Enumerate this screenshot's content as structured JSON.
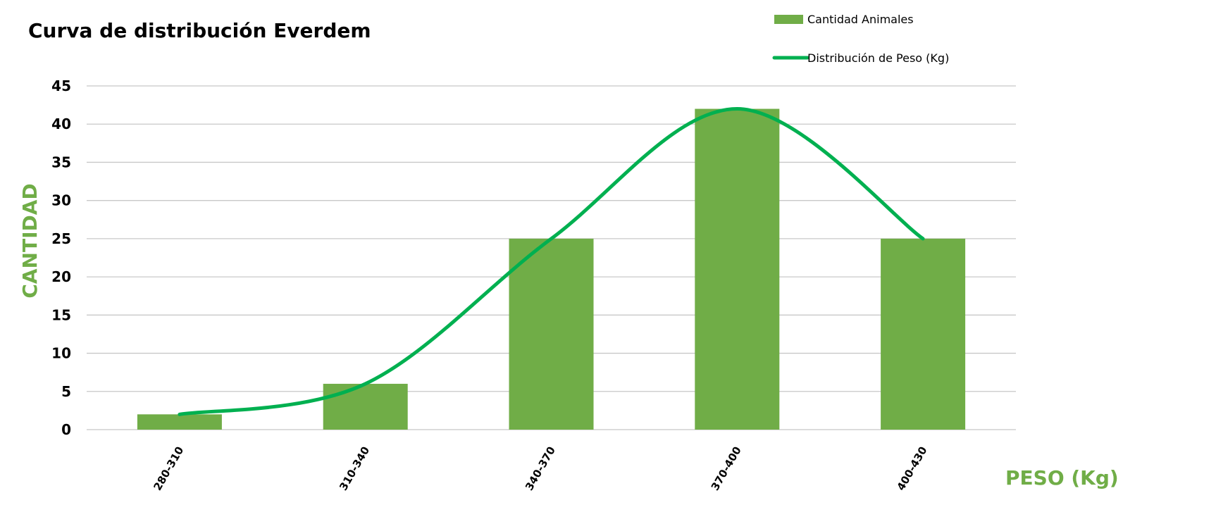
{
  "chart_data": {
    "type": "bar",
    "title": "Curva de distribución Everdem",
    "xlabel": "PESO (Kg)",
    "ylabel": "CANTIDAD",
    "categories": [
      "280-310",
      "310-340",
      "340-370",
      "370-400",
      "400-430"
    ],
    "series": [
      {
        "name": "Cantidad Animales",
        "type": "bar",
        "values": [
          2,
          6,
          25,
          42,
          25
        ],
        "color": "#70ad47"
      },
      {
        "name": "Distribución de Peso (Kg)",
        "type": "line",
        "smooth": true,
        "values": [
          2,
          6,
          25,
          42,
          25
        ],
        "color": "#00b050"
      }
    ],
    "ylim": [
      0,
      45
    ],
    "yticks": [
      0,
      5,
      10,
      15,
      20,
      25,
      30,
      35,
      40,
      45
    ],
    "grid": true,
    "legend": "top-right",
    "axis_label_color": "#70ad47"
  }
}
